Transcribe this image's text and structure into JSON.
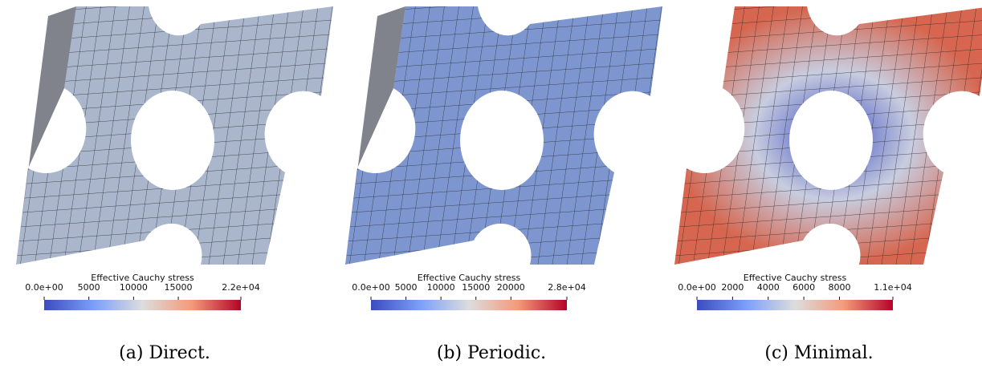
{
  "panels": [
    {
      "colorbar": {
        "title": "Effective Cauchy stress",
        "ticks": [
          {
            "value": 0,
            "label": "0.0e+00"
          },
          5000,
          10000,
          15000,
          {
            "value": 22000,
            "label": "2.2e+04"
          }
        ]
      },
      "caption": "(a) Direct."
    },
    {
      "colorbar": {
        "title": "Effective Cauchy stress",
        "ticks": [
          {
            "value": 0,
            "label": "0.0e+00"
          },
          5000,
          10000,
          15000,
          20000,
          {
            "value": 28000,
            "label": "2.8e+04"
          }
        ]
      },
      "caption": "(b) Periodic."
    },
    {
      "colorbar": {
        "title": "Effective Cauchy stress",
        "ticks": [
          {
            "value": 0,
            "label": "0.0e+00"
          },
          2000,
          4000,
          6000,
          8000,
          {
            "value": 11000,
            "label": "1.1e+04"
          }
        ]
      },
      "caption": "(c) Minimal."
    }
  ]
}
